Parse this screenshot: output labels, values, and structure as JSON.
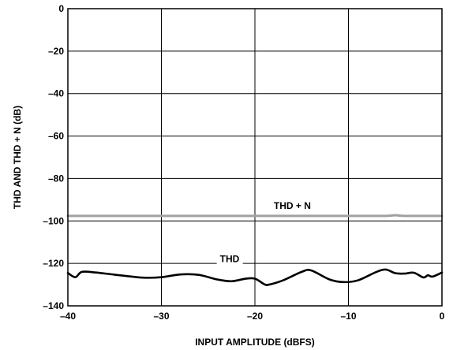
{
  "chart_data": {
    "type": "line",
    "xlabel": "INPUT AMPLITUDE (dBFS)",
    "ylabel": "THD AND THD + N (dB)",
    "xlim": [
      -40,
      0
    ],
    "ylim": [
      -140,
      0
    ],
    "x_ticks": [
      -40,
      -30,
      -20,
      -10,
      0
    ],
    "x_tick_labels": [
      "–40",
      "–30",
      "–20",
      "–10",
      "0"
    ],
    "y_ticks": [
      0,
      -20,
      -40,
      -60,
      -80,
      -100,
      -120,
      -140
    ],
    "y_tick_labels": [
      "0",
      "–20",
      "–40",
      "–60",
      "–80",
      "–100",
      "–120",
      "–140"
    ],
    "grid": true,
    "series": [
      {
        "name": "THD + N",
        "color": "#a0a0a0",
        "x": [
          -40,
          -35,
          -30,
          -25,
          -20,
          -15,
          -10,
          -6,
          -5,
          -4,
          0
        ],
        "y": [
          -97.6,
          -97.6,
          -97.6,
          -97.6,
          -97.6,
          -97.6,
          -97.6,
          -97.6,
          -97.3,
          -97.6,
          -97.6
        ]
      },
      {
        "name": "THD",
        "color": "#000000",
        "x": [
          -40,
          -39.2,
          -38.5,
          -37,
          -35,
          -32,
          -30,
          -28,
          -26,
          -24,
          -22.5,
          -21,
          -20,
          -19,
          -18.5,
          -17,
          -15,
          -14,
          -12,
          -10.5,
          -9,
          -7,
          -6,
          -5,
          -4,
          -3,
          -2,
          -1.5,
          -1,
          0
        ],
        "y": [
          -124.5,
          -126.5,
          -124,
          -124.3,
          -125.3,
          -126.7,
          -126.5,
          -125.2,
          -125.4,
          -127.6,
          -128.4,
          -127.2,
          -127.2,
          -129.8,
          -130.0,
          -128.0,
          -124.0,
          -123.3,
          -127.6,
          -128.8,
          -128.0,
          -124.0,
          -122.9,
          -124.6,
          -124.8,
          -124.4,
          -126.6,
          -125.6,
          -126.2,
          -124.3
        ]
      }
    ],
    "annotations": [
      {
        "text": "THD + N",
        "x": -16,
        "y": -92.8
      },
      {
        "text": "THD",
        "x": -22.7,
        "y": -117.9
      }
    ]
  }
}
